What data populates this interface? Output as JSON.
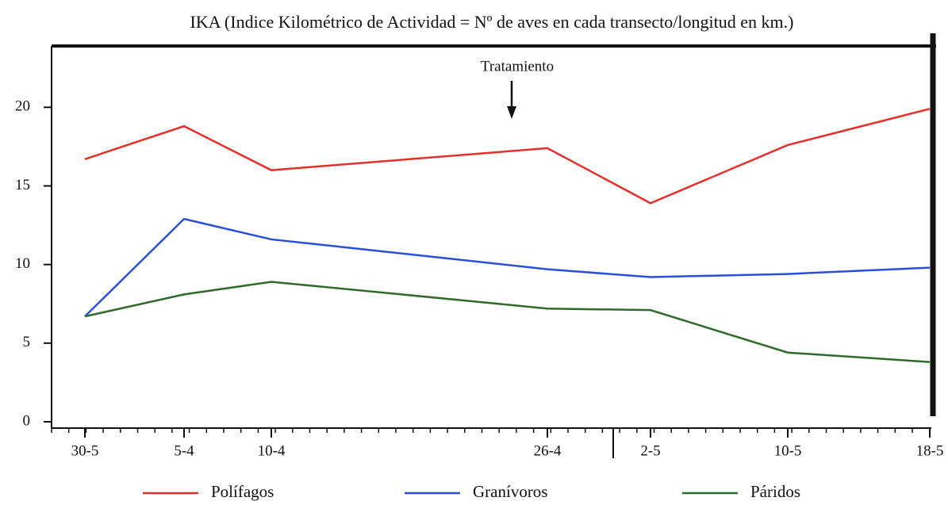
{
  "chart_data": {
    "type": "line",
    "title": "IKA (Indice Kilométrico de Actividad = Nº de aves en cada transecto/longitud en km.)",
    "annotation": "Tratamiento",
    "categories": [
      "30-5",
      "5-4",
      "10-4",
      "26-4",
      "2-5",
      "10-5",
      "18-5"
    ],
    "series": [
      {
        "name": "Polífagos",
        "color": "#e3302a",
        "values": [
          16.7,
          18.8,
          16.0,
          17.4,
          13.9,
          17.6,
          19.9
        ]
      },
      {
        "name": "Granívoros",
        "color": "#2b4fd6",
        "values": [
          6.7,
          12.9,
          11.6,
          9.7,
          9.2,
          9.4,
          9.8
        ]
      },
      {
        "name": "Páridos",
        "color": "#2e6b2a",
        "values": [
          6.7,
          8.1,
          8.9,
          7.2,
          7.1,
          4.4,
          3.8
        ]
      }
    ],
    "ylim": [
      0,
      24
    ],
    "yticks": [
      0,
      5,
      10,
      15,
      20
    ]
  }
}
